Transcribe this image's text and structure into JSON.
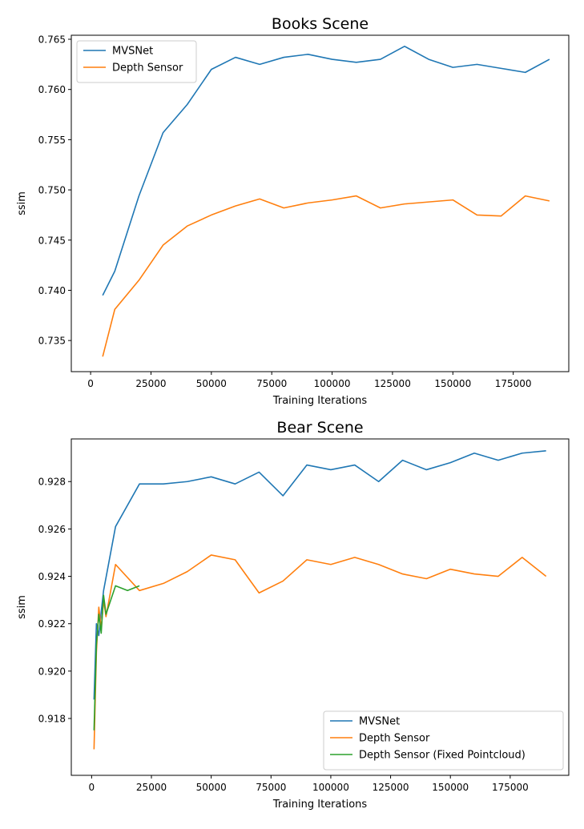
{
  "chart_data": [
    {
      "type": "line",
      "title": "Books Scene",
      "xlabel": "Training Iterations",
      "ylabel": "ssim",
      "xlim": [
        -8000,
        198000
      ],
      "ylim": [
        0.7319,
        0.7654
      ],
      "xticks": [
        0,
        25000,
        50000,
        75000,
        100000,
        125000,
        150000,
        175000
      ],
      "yticks": [
        0.735,
        0.74,
        0.745,
        0.75,
        0.755,
        0.76,
        0.765
      ],
      "ytick_labels": [
        "0.735",
        "0.740",
        "0.745",
        "0.750",
        "0.755",
        "0.760",
        "0.765"
      ],
      "grid": false,
      "legend": "upper left",
      "series": [
        {
          "name": "MVSNet",
          "color": "#1f77b4",
          "x": [
            5000,
            10000,
            20000,
            30000,
            40000,
            50000,
            60000,
            70000,
            80000,
            90000,
            100000,
            110000,
            120000,
            130000,
            140000,
            150000,
            160000,
            170000,
            180000,
            190000
          ],
          "y": [
            0.7395,
            0.7419,
            0.7494,
            0.7557,
            0.7585,
            0.762,
            0.7632,
            0.7625,
            0.7632,
            0.7635,
            0.763,
            0.7627,
            0.763,
            0.7643,
            0.763,
            0.7622,
            0.7625,
            0.7621,
            0.7617,
            0.763
          ]
        },
        {
          "name": "Depth Sensor",
          "color": "#ff7f0e",
          "x": [
            5000,
            10000,
            20000,
            30000,
            40000,
            50000,
            60000,
            70000,
            80000,
            90000,
            100000,
            110000,
            120000,
            130000,
            140000,
            150000,
            160000,
            170000,
            180000,
            190000
          ],
          "y": [
            0.7334,
            0.7381,
            0.741,
            0.7445,
            0.7464,
            0.7475,
            0.7484,
            0.7491,
            0.7482,
            0.7487,
            0.749,
            0.7494,
            0.7482,
            0.7486,
            0.7488,
            0.749,
            0.7475,
            0.7474,
            0.7494,
            0.7489
          ]
        }
      ]
    },
    {
      "type": "line",
      "title": "Bear Scene",
      "xlabel": "Training Iterations",
      "ylabel": "ssim",
      "xlim": [
        -8500,
        199500
      ],
      "ylim": [
        0.9156,
        0.9298
      ],
      "xticks": [
        0,
        25000,
        50000,
        75000,
        100000,
        125000,
        150000,
        175000
      ],
      "yticks": [
        0.918,
        0.92,
        0.922,
        0.924,
        0.926,
        0.928
      ],
      "ytick_labels": [
        "0.918",
        "0.920",
        "0.922",
        "0.924",
        "0.926",
        "0.928"
      ],
      "grid": false,
      "legend": "lower right",
      "series": [
        {
          "name": "MVSNet",
          "color": "#1f77b4",
          "x": [
            1000,
            2000,
            3000,
            4000,
            5000,
            10000,
            20000,
            30000,
            40000,
            50000,
            60000,
            70000,
            80000,
            90000,
            100000,
            110000,
            120000,
            130000,
            140000,
            150000,
            160000,
            170000,
            180000,
            190000
          ],
          "y": [
            0.9188,
            0.922,
            0.9215,
            0.9225,
            0.9234,
            0.9261,
            0.9279,
            0.9279,
            0.928,
            0.9282,
            0.9279,
            0.9284,
            0.9274,
            0.9287,
            0.9285,
            0.9287,
            0.928,
            0.9289,
            0.9285,
            0.9288,
            0.9292,
            0.9289,
            0.9292,
            0.9293
          ]
        },
        {
          "name": "Depth Sensor",
          "color": "#ff7f0e",
          "x": [
            1000,
            2000,
            3000,
            4000,
            5000,
            6000,
            10000,
            20000,
            30000,
            40000,
            50000,
            60000,
            70000,
            80000,
            90000,
            100000,
            110000,
            120000,
            130000,
            140000,
            150000,
            160000,
            170000,
            180000,
            190000
          ],
          "y": [
            0.9167,
            0.9208,
            0.9227,
            0.9218,
            0.923,
            0.9223,
            0.9245,
            0.9234,
            0.9237,
            0.9242,
            0.9249,
            0.9247,
            0.9233,
            0.9238,
            0.9247,
            0.9245,
            0.9248,
            0.9245,
            0.9241,
            0.9239,
            0.9243,
            0.9241,
            0.924,
            0.9248,
            0.924
          ]
        },
        {
          "name": "Depth Sensor (Fixed Pointcloud)",
          "color": "#2ca02c",
          "x": [
            1000,
            2000,
            3000,
            4000,
            5000,
            6000,
            10000,
            15000,
            20000
          ],
          "y": [
            0.9175,
            0.9211,
            0.9224,
            0.9216,
            0.9232,
            0.9224,
            0.9236,
            0.9234,
            0.9236
          ]
        }
      ]
    }
  ]
}
